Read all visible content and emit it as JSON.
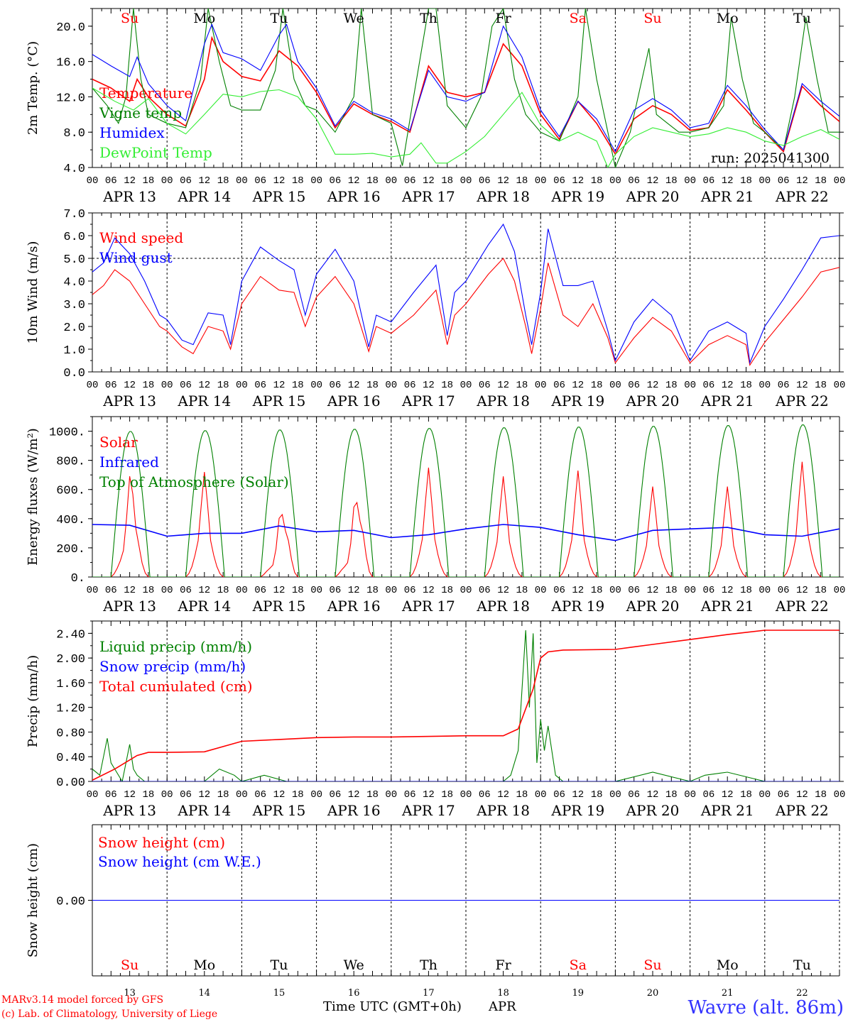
{
  "chart_data": [
    {
      "type": "line",
      "panel": "temperature",
      "ylabel": "2m Temp. (°C)",
      "ylim": [
        4.0,
        22.0
      ],
      "yticks": [
        4.0,
        8.0,
        12.0,
        16.0,
        20.0
      ],
      "x_unit": "days since 2025-04-13 00 UTC",
      "annotation": "run: 2025041300",
      "series": [
        {
          "name": "Temperature",
          "color": "#ff0000",
          "x": [
            0,
            0.25,
            0.5,
            0.6,
            0.75,
            1.0,
            1.25,
            1.5,
            1.6,
            1.75,
            2.0,
            2.25,
            2.5,
            2.75,
            3.0,
            3.25,
            3.5,
            3.75,
            4.0,
            4.25,
            4.5,
            4.75,
            5.0,
            5.25,
            5.5,
            5.75,
            6.0,
            6.25,
            6.5,
            6.75,
            7.0,
            7.25,
            7.5,
            7.75,
            8.0,
            8.25,
            8.5,
            8.75,
            9.0,
            9.25,
            9.5,
            9.75,
            10.0
          ],
          "y": [
            14.0,
            13.0,
            11.5,
            14.0,
            12.0,
            10.0,
            8.7,
            14.0,
            18.7,
            16.0,
            14.3,
            13.8,
            17.2,
            15.5,
            12.5,
            8.5,
            11.2,
            10.0,
            9.2,
            8.0,
            15.5,
            12.5,
            12.0,
            12.5,
            18.0,
            15.5,
            10.0,
            7.2,
            11.5,
            9.0,
            5.5,
            9.5,
            11.0,
            10.0,
            8.2,
            8.5,
            12.8,
            10.5,
            8.0,
            5.8,
            13.2,
            11.0,
            9.2
          ]
        },
        {
          "name": "Vigne temp",
          "color": "#008000",
          "x": [
            0,
            0.2,
            0.35,
            0.45,
            0.55,
            0.65,
            0.75,
            1.0,
            1.25,
            1.45,
            1.55,
            1.7,
            1.85,
            2.0,
            2.25,
            2.45,
            2.55,
            2.7,
            2.85,
            3.0,
            3.25,
            3.5,
            3.6,
            3.75,
            4.0,
            4.15,
            4.3,
            4.5,
            4.6,
            4.75,
            5.0,
            5.2,
            5.35,
            5.5,
            5.65,
            5.8,
            6.0,
            6.25,
            6.5,
            6.6,
            6.75,
            7.0,
            7.2,
            7.45,
            7.55,
            7.7,
            7.85,
            8.0,
            8.25,
            8.45,
            8.55,
            8.7,
            8.85,
            9.0,
            9.25,
            9.4,
            9.55,
            9.7,
            9.85,
            10.0
          ],
          "y": [
            13.0,
            11.0,
            9.0,
            12.0,
            22.0,
            14.0,
            10.0,
            9.0,
            8.5,
            14.0,
            22.0,
            16.0,
            11.0,
            10.5,
            10.5,
            15.0,
            22.0,
            14.0,
            11.0,
            10.5,
            8.0,
            12.0,
            22.0,
            10.0,
            9.0,
            4.2,
            12.0,
            22.0,
            22.0,
            11.0,
            8.5,
            12.0,
            20.0,
            22.0,
            14.0,
            10.0,
            8.0,
            7.0,
            12.0,
            22.0,
            14.0,
            4.0,
            8.0,
            17.5,
            10.0,
            9.0,
            8.0,
            8.0,
            8.5,
            11.0,
            21.0,
            14.0,
            9.0,
            8.0,
            6.0,
            12.0,
            21.0,
            14.0,
            8.0,
            8.0
          ]
        },
        {
          "name": "Humidex",
          "color": "#0000ff",
          "x": [
            0,
            0.25,
            0.5,
            0.6,
            0.75,
            1.0,
            1.25,
            1.5,
            1.6,
            1.75,
            2.0,
            2.25,
            2.5,
            2.6,
            2.75,
            3.0,
            3.25,
            3.5,
            3.75,
            4.0,
            4.25,
            4.5,
            4.75,
            5.0,
            5.25,
            5.5,
            5.75,
            6.0,
            6.25,
            6.5,
            6.75,
            7.0,
            7.25,
            7.5,
            7.75,
            8.0,
            8.25,
            8.5,
            8.75,
            9.0,
            9.25,
            9.5,
            9.75,
            10.0
          ],
          "y": [
            16.8,
            15.5,
            14.3,
            16.5,
            13.5,
            11.0,
            9.3,
            18.0,
            20.2,
            17.0,
            16.3,
            15.0,
            19.0,
            20.2,
            16.0,
            13.0,
            8.7,
            11.5,
            10.2,
            9.5,
            8.2,
            15.0,
            12.0,
            11.5,
            12.5,
            20.0,
            16.5,
            10.5,
            7.5,
            11.5,
            9.5,
            5.8,
            10.5,
            11.8,
            10.5,
            8.5,
            9.0,
            13.3,
            11.0,
            8.3,
            6.0,
            13.5,
            11.5,
            9.8
          ]
        },
        {
          "name": "DewPoint Temp",
          "color": "#33ee33",
          "x": [
            0,
            0.3,
            0.55,
            0.75,
            1.0,
            1.25,
            1.5,
            1.75,
            2.0,
            2.25,
            2.5,
            2.75,
            3.0,
            3.25,
            3.5,
            3.75,
            4.0,
            4.25,
            4.4,
            4.6,
            4.75,
            5.0,
            5.25,
            5.5,
            5.75,
            6.0,
            6.25,
            6.5,
            6.75,
            6.9,
            7.0,
            7.25,
            7.5,
            7.75,
            8.0,
            8.25,
            8.5,
            8.75,
            9.0,
            9.25,
            9.5,
            9.75,
            10.0
          ],
          "y": [
            13.0,
            11.5,
            10.5,
            11.8,
            9.0,
            7.8,
            10.0,
            12.3,
            12.0,
            12.6,
            12.8,
            12.0,
            9.5,
            5.5,
            5.5,
            5.6,
            5.2,
            5.5,
            6.8,
            4.5,
            4.5,
            5.8,
            7.5,
            10.0,
            12.5,
            8.8,
            7.0,
            8.0,
            7.0,
            4.0,
            5.5,
            7.5,
            8.5,
            8.0,
            7.5,
            7.8,
            8.5,
            8.0,
            7.0,
            6.5,
            7.5,
            8.3,
            7.2
          ]
        }
      ]
    },
    {
      "type": "line",
      "panel": "wind",
      "ylabel": "10m Wind (m/s)",
      "ylim": [
        0.0,
        7.0
      ],
      "yticks": [
        0.0,
        1.0,
        2.0,
        3.0,
        4.0,
        5.0,
        6.0,
        7.0
      ],
      "hline": 5.0,
      "series": [
        {
          "name": "Wind speed",
          "color": "#ff0000",
          "x": [
            0,
            0.15,
            0.3,
            0.5,
            0.7,
            0.9,
            1.0,
            1.2,
            1.35,
            1.55,
            1.75,
            1.85,
            2.0,
            2.25,
            2.5,
            2.7,
            2.85,
            3.0,
            3.25,
            3.5,
            3.7,
            3.8,
            4.0,
            4.3,
            4.6,
            4.75,
            4.85,
            5.0,
            5.3,
            5.5,
            5.65,
            5.8,
            5.88,
            6.0,
            6.1,
            6.3,
            6.5,
            6.7,
            6.9,
            7.0,
            7.25,
            7.5,
            7.75,
            8.0,
            8.25,
            8.5,
            8.75,
            8.8,
            9.0,
            9.25,
            9.5,
            9.75,
            10.0
          ],
          "y": [
            3.4,
            3.8,
            4.5,
            4.0,
            3.0,
            2.0,
            1.8,
            1.1,
            0.8,
            2.0,
            1.8,
            1.0,
            3.0,
            4.2,
            3.6,
            3.5,
            2.0,
            3.3,
            4.2,
            3.0,
            0.9,
            2.0,
            1.7,
            2.5,
            3.6,
            1.2,
            2.5,
            3.0,
            4.3,
            5.0,
            4.0,
            2.0,
            0.8,
            2.8,
            4.8,
            2.5,
            2.0,
            3.0,
            1.5,
            0.4,
            1.5,
            2.4,
            1.8,
            0.4,
            1.2,
            1.6,
            1.2,
            0.3,
            1.3,
            2.3,
            3.3,
            4.4,
            4.6
          ]
        },
        {
          "name": "Wind gust",
          "color": "#0000ff",
          "x": [
            0,
            0.15,
            0.3,
            0.5,
            0.7,
            0.9,
            1.0,
            1.2,
            1.35,
            1.55,
            1.75,
            1.85,
            2.0,
            2.25,
            2.5,
            2.7,
            2.85,
            3.0,
            3.25,
            3.5,
            3.7,
            3.8,
            4.0,
            4.3,
            4.6,
            4.75,
            4.85,
            5.0,
            5.3,
            5.5,
            5.65,
            5.8,
            5.88,
            6.0,
            6.1,
            6.3,
            6.5,
            6.7,
            6.9,
            7.0,
            7.25,
            7.5,
            7.75,
            8.0,
            8.25,
            8.5,
            8.75,
            8.8,
            9.0,
            9.25,
            9.5,
            9.75,
            10.0
          ],
          "y": [
            4.4,
            4.8,
            5.9,
            5.2,
            4.0,
            2.5,
            2.3,
            1.4,
            1.2,
            2.6,
            2.5,
            1.2,
            4.0,
            5.5,
            4.9,
            4.5,
            2.5,
            4.3,
            5.4,
            4.0,
            1.1,
            2.5,
            2.2,
            3.5,
            4.7,
            1.6,
            3.5,
            4.0,
            5.6,
            6.5,
            5.3,
            2.5,
            1.2,
            3.5,
            6.3,
            3.8,
            3.8,
            4.0,
            1.8,
            0.5,
            2.2,
            3.2,
            2.5,
            0.5,
            1.8,
            2.2,
            1.7,
            0.4,
            2.0,
            3.2,
            4.5,
            5.9,
            6.0
          ]
        }
      ]
    },
    {
      "type": "line",
      "panel": "energy",
      "ylabel": "Energy fluxes (W/m²)",
      "ylim": [
        0,
        1100
      ],
      "yticks": [
        0,
        200,
        400,
        600,
        800,
        1000
      ],
      "ytick_labels": [
        "0.",
        "200.",
        "400.",
        "600.",
        "800.",
        "1000."
      ],
      "series": [
        {
          "name": "Solar",
          "color": "#ff0000",
          "solar_peaks": [
            [
              0.52,
              720
            ],
            [
              1.5,
              720
            ],
            [
              2.55,
              520
            ],
            [
              3.55,
              620
            ],
            [
              4.5,
              750
            ],
            [
              5.5,
              690
            ],
            [
              6.5,
              730
            ],
            [
              7.5,
              620
            ],
            [
              8.5,
              620
            ],
            [
              9.5,
              790
            ]
          ]
        },
        {
          "name": "Infrared",
          "color": "#0000ff",
          "x": [
            0,
            0.5,
            1.0,
            1.5,
            2.0,
            2.5,
            3.0,
            3.5,
            4.0,
            4.5,
            5.0,
            5.5,
            6.0,
            6.5,
            7.0,
            7.5,
            8.0,
            8.5,
            9.0,
            9.5,
            10.0
          ],
          "y": [
            360,
            355,
            280,
            300,
            300,
            350,
            310,
            320,
            270,
            290,
            330,
            360,
            340,
            290,
            250,
            320,
            330,
            340,
            290,
            280,
            330
          ]
        },
        {
          "name": "Top of Atmosphere (Solar)",
          "color": "#008000",
          "toa_peaks": [
            1000,
            1005,
            1010,
            1015,
            1020,
            1025,
            1030,
            1035,
            1040,
            1045
          ]
        }
      ]
    },
    {
      "type": "line",
      "panel": "precip",
      "ylabel": "Precip (mm/h)",
      "ylim": [
        0.0,
        2.6
      ],
      "yticks": [
        0.0,
        0.4,
        0.8,
        1.2,
        1.6,
        2.0,
        2.4
      ],
      "ytick_labels": [
        "0.00",
        "0.40",
        "0.80",
        "1.20",
        "1.60",
        "2.00",
        "2.40"
      ],
      "series": [
        {
          "name": "Liquid precip (mm/h)",
          "color": "#008000",
          "x": [
            0,
            0.1,
            0.2,
            0.25,
            0.3,
            0.4,
            0.5,
            0.55,
            0.6,
            0.7,
            1.0,
            1.5,
            1.7,
            1.9,
            2.0,
            2.3,
            2.6,
            3.0,
            5.0,
            5.5,
            5.6,
            5.7,
            5.8,
            5.85,
            5.9,
            5.95,
            6.0,
            6.05,
            6.1,
            6.2,
            6.3,
            6.4,
            7.0,
            7.5,
            8.0,
            8.2,
            8.5,
            9.0,
            9.5,
            10.0
          ],
          "y": [
            0.2,
            0.1,
            0.7,
            0.3,
            0.2,
            0.0,
            0.6,
            0.2,
            0.1,
            0.0,
            0.0,
            0.0,
            0.2,
            0.1,
            0.0,
            0.1,
            0.0,
            0.0,
            0.0,
            0.0,
            0.1,
            0.5,
            2.45,
            1.2,
            2.4,
            0.3,
            1.0,
            0.5,
            0.9,
            0.1,
            0.0,
            0.0,
            0.0,
            0.15,
            0.0,
            0.1,
            0.15,
            0.0,
            0.0,
            0.0
          ]
        },
        {
          "name": "Snow precip (mm/h)",
          "color": "#0000ff",
          "x": [
            0,
            10
          ],
          "y": [
            0.0,
            0.0
          ]
        },
        {
          "name": "Total cumulated (cm)",
          "color": "#ff0000",
          "x": [
            0,
            0.3,
            0.6,
            0.75,
            1.0,
            1.5,
            2.0,
            2.5,
            3.0,
            3.5,
            4.0,
            5.0,
            5.5,
            5.7,
            5.9,
            6.0,
            6.1,
            6.3,
            7.0,
            7.5,
            8.0,
            8.5,
            9.0,
            10.0
          ],
          "y": [
            0.02,
            0.2,
            0.42,
            0.47,
            0.47,
            0.48,
            0.65,
            0.68,
            0.71,
            0.72,
            0.72,
            0.74,
            0.74,
            0.85,
            1.5,
            2.0,
            2.1,
            2.13,
            2.14,
            2.22,
            2.3,
            2.38,
            2.45,
            2.45
          ]
        }
      ]
    },
    {
      "type": "line",
      "panel": "snow",
      "ylabel": "Snow height (cm)",
      "yticks": [
        0.0
      ],
      "ytick_labels": [
        "0.00"
      ],
      "series": [
        {
          "name": "Snow height (cm)",
          "color": "#ff0000",
          "x": [
            0,
            10
          ],
          "y": [
            0.0,
            0.0
          ]
        },
        {
          "name": "Snow height (cm W.E.)",
          "color": "#0000ff",
          "x": [
            0,
            10
          ],
          "y": [
            0.0,
            0.0
          ]
        }
      ]
    }
  ],
  "days": [
    {
      "dow": "Su",
      "weekend": true,
      "date": "APR 13",
      "daynum": "13"
    },
    {
      "dow": "Mo",
      "weekend": false,
      "date": "APR 14",
      "daynum": "14"
    },
    {
      "dow": "Tu",
      "weekend": false,
      "date": "APR 15",
      "daynum": "15"
    },
    {
      "dow": "We",
      "weekend": false,
      "date": "APR 16",
      "daynum": "16"
    },
    {
      "dow": "Th",
      "weekend": false,
      "date": "APR 17",
      "daynum": "17"
    },
    {
      "dow": "Fr",
      "weekend": false,
      "date": "APR 18",
      "daynum": "18"
    },
    {
      "dow": "Sa",
      "weekend": true,
      "date": "APR 19",
      "daynum": "19"
    },
    {
      "dow": "Su",
      "weekend": true,
      "date": "APR 20",
      "daynum": "20"
    },
    {
      "dow": "Mo",
      "weekend": false,
      "date": "APR 21",
      "daynum": "21"
    },
    {
      "dow": "Tu",
      "weekend": false,
      "date": "APR 22",
      "daynum": "22"
    }
  ],
  "hour_labels": [
    "00",
    "06",
    "12",
    "18"
  ],
  "hour_end_label": "00",
  "footer": {
    "credit_line1": "MARv3.14 model forced by GFS",
    "credit_line2": "(c) Lab. of Climatology, University of Liege",
    "xlabel": "Time UTC (GMT+0h)",
    "month": "APR",
    "station": "Wavre (alt. 86m)"
  },
  "colors": {
    "red": "#ff0000",
    "blue": "#0000ff",
    "green": "#008000",
    "lightgreen": "#33ee33",
    "weekend": "#ff0000",
    "weekday": "#000000"
  }
}
